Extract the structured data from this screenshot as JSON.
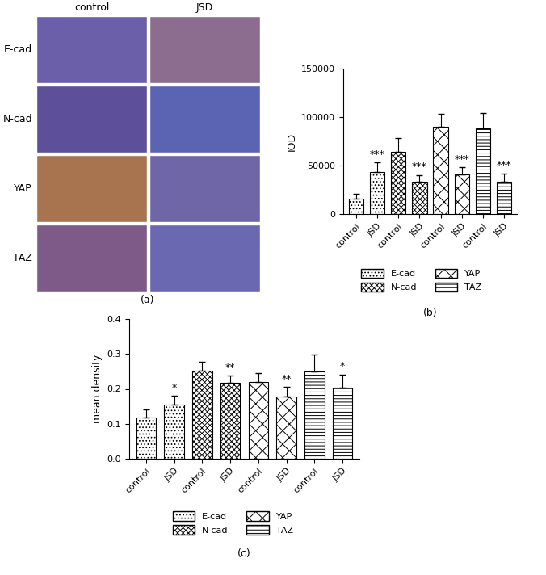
{
  "image_panel": {
    "label": "(a)",
    "columns": [
      "control",
      "JSD"
    ],
    "rows": [
      "E-cad",
      "N-cad",
      "YAP",
      "TAZ"
    ]
  },
  "chart_data": [
    {
      "type": "bar",
      "panel": "(b)",
      "ylabel": "IOD",
      "categories": [
        "control",
        "JSD",
        "control",
        "JSD",
        "control",
        "JSD",
        "control",
        "JSD"
      ],
      "ylim": [
        0,
        150000
      ],
      "yticks": [
        0,
        50000,
        100000,
        150000
      ],
      "legend": "below",
      "series": [
        {
          "name": "E-cad",
          "color": "#ffffff",
          "values": [
            16000,
            43000,
            null,
            null,
            null,
            null,
            null,
            null
          ],
          "errors": [
            5000,
            10000,
            null,
            null,
            null,
            null,
            null,
            null
          ],
          "significance": [
            null,
            "***",
            null,
            null,
            null,
            null,
            null,
            null
          ]
        },
        {
          "name": "N-cad",
          "color": "#ffffff",
          "values": [
            null,
            null,
            64000,
            33000,
            null,
            null,
            null,
            null
          ],
          "errors": [
            null,
            null,
            14000,
            7000,
            null,
            null,
            null,
            null
          ],
          "significance": [
            null,
            null,
            null,
            "***",
            null,
            null,
            null,
            null
          ]
        },
        {
          "name": "YAP",
          "color": "#ffffff",
          "values": [
            null,
            null,
            null,
            null,
            90000,
            41000,
            null,
            null
          ],
          "errors": [
            null,
            null,
            null,
            null,
            13000,
            7000,
            null,
            null
          ],
          "significance": [
            null,
            null,
            null,
            null,
            null,
            "***",
            null,
            null
          ]
        },
        {
          "name": "TAZ",
          "color": "#ffffff",
          "values": [
            null,
            null,
            null,
            null,
            null,
            null,
            88000,
            33000
          ],
          "errors": [
            null,
            null,
            null,
            null,
            null,
            null,
            16000,
            9000
          ],
          "significance": [
            null,
            null,
            null,
            null,
            null,
            null,
            null,
            "***"
          ]
        }
      ]
    },
    {
      "type": "bar",
      "panel": "(c)",
      "ylabel": "mean density",
      "categories": [
        "control",
        "JSD",
        "control",
        "JSD",
        "control",
        "JSD",
        "control",
        "JSD"
      ],
      "ylim": [
        0,
        0.4
      ],
      "yticks": [
        {
          "value": 0,
          "label": "0.0"
        },
        0.1,
        0.2,
        0.3,
        0.4
      ],
      "legend": "below",
      "series": [
        {
          "name": "E-cad",
          "color": "#ffffff",
          "values": [
            0.118,
            0.155,
            null,
            null,
            null,
            null,
            null,
            null
          ],
          "errors": [
            0.022,
            0.025,
            null,
            null,
            null,
            null,
            null,
            null
          ],
          "significance": [
            null,
            "*",
            null,
            null,
            null,
            null,
            null,
            null
          ]
        },
        {
          "name": "N-cad",
          "color": "#ffffff",
          "values": [
            null,
            null,
            0.253,
            0.217,
            null,
            null,
            null,
            null
          ],
          "errors": [
            null,
            null,
            0.025,
            0.02,
            null,
            null,
            null,
            null
          ],
          "significance": [
            null,
            null,
            null,
            "**",
            null,
            null,
            null,
            null
          ]
        },
        {
          "name": "YAP",
          "color": "#ffffff",
          "values": [
            null,
            null,
            null,
            null,
            0.219,
            0.177,
            null,
            null
          ],
          "errors": [
            null,
            null,
            null,
            null,
            0.025,
            0.028,
            null,
            null
          ],
          "significance": [
            null,
            null,
            null,
            null,
            null,
            "**",
            null,
            null
          ]
        },
        {
          "name": "TAZ",
          "color": "#ffffff",
          "values": [
            null,
            null,
            null,
            null,
            null,
            null,
            0.25,
            0.203
          ],
          "errors": [
            null,
            null,
            null,
            null,
            null,
            null,
            0.048,
            0.038
          ],
          "significance": [
            null,
            null,
            null,
            null,
            null,
            null,
            null,
            "*"
          ]
        }
      ]
    }
  ]
}
